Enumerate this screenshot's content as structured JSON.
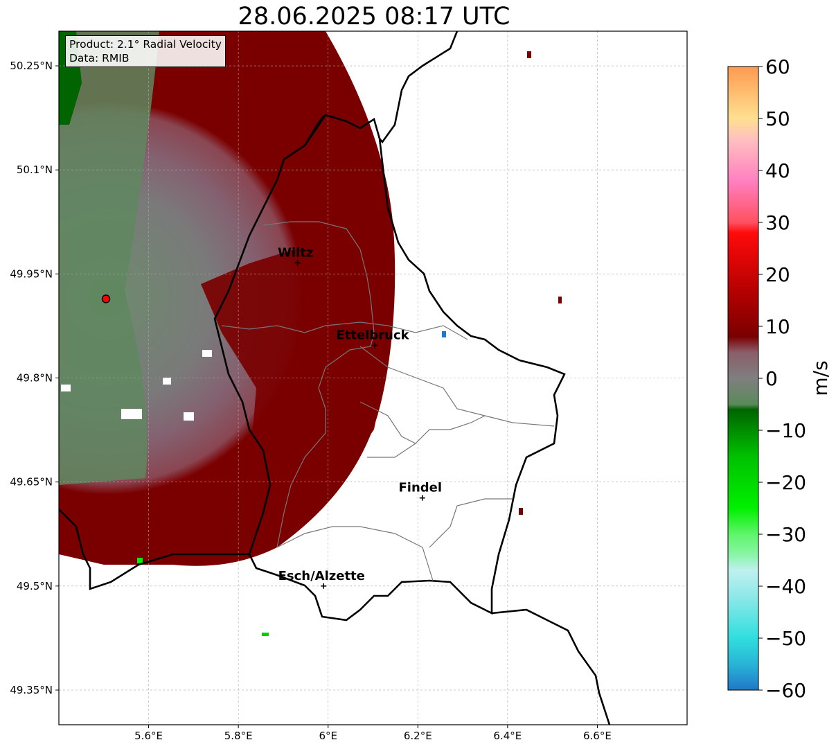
{
  "title": "28.06.2025 08:17 UTC",
  "info": {
    "product": "Product: 2.1° Radial Velocity",
    "data": "Data: RMIB"
  },
  "map": {
    "lon_range": [
      5.4,
      6.8
    ],
    "lat_range": [
      49.3,
      50.3
    ],
    "lat_ticks": [
      {
        "value": 50.25,
        "label": "50.25°N"
      },
      {
        "value": 50.1,
        "label": "50.1°N"
      },
      {
        "value": 49.95,
        "label": "49.95°N"
      },
      {
        "value": 49.8,
        "label": "49.8°N"
      },
      {
        "value": 49.65,
        "label": "49.65°N"
      },
      {
        "value": 49.5,
        "label": "49.5°N"
      },
      {
        "value": 49.35,
        "label": "49.35°N"
      }
    ],
    "lon_ticks": [
      {
        "value": 5.6,
        "label": "5.6°E"
      },
      {
        "value": 5.8,
        "label": "5.8°E"
      },
      {
        "value": 6.0,
        "label": "6°E"
      },
      {
        "value": 6.2,
        "label": "6.2°E"
      },
      {
        "value": 6.4,
        "label": "6.4°E"
      },
      {
        "value": 6.6,
        "label": "6.6°E"
      }
    ],
    "grid": true,
    "radar_site": {
      "lon": 5.505,
      "lat": 49.914
    },
    "cities": [
      {
        "name": "Wiltz",
        "lon": 5.932,
        "lat": 49.966
      },
      {
        "name": "Ettelbruck",
        "lon": 6.104,
        "lat": 49.847
      },
      {
        "name": "Findel",
        "lon": 6.21,
        "lat": 49.627
      },
      {
        "name": "Esch/Alzette",
        "lon": 5.99,
        "lat": 49.5
      }
    ]
  },
  "colorbar": {
    "min": -60,
    "max": 60,
    "ticks": [
      {
        "value": 60,
        "label": "60"
      },
      {
        "value": 50,
        "label": "50"
      },
      {
        "value": 40,
        "label": "40"
      },
      {
        "value": 30,
        "label": "30"
      },
      {
        "value": 20,
        "label": "20"
      },
      {
        "value": 10,
        "label": "10"
      },
      {
        "value": 0,
        "label": "0"
      },
      {
        "value": -10,
        "label": "−10"
      },
      {
        "value": -20,
        "label": "−20"
      },
      {
        "value": -30,
        "label": "−30"
      },
      {
        "value": -40,
        "label": "−40"
      },
      {
        "value": -50,
        "label": "−50"
      },
      {
        "value": -60,
        "label": "−60"
      }
    ],
    "unit": "m/s",
    "stops": [
      {
        "value": -60,
        "color": "#1f78c8"
      },
      {
        "value": -55,
        "color": "#29b4d6"
      },
      {
        "value": -50,
        "color": "#30dede"
      },
      {
        "value": -42,
        "color": "#8fe8e8"
      },
      {
        "value": -37,
        "color": "#bff0f0"
      },
      {
        "value": -34,
        "color": "#8af5a8"
      },
      {
        "value": -30,
        "color": "#5ff56a"
      },
      {
        "value": -25,
        "color": "#00f000"
      },
      {
        "value": -15,
        "color": "#00c000"
      },
      {
        "value": -6,
        "color": "#006400"
      },
      {
        "value": -5,
        "color": "#5a8a5a"
      },
      {
        "value": 0,
        "color": "#7f7f7f"
      },
      {
        "value": 5,
        "color": "#8a5e6a"
      },
      {
        "value": 8,
        "color": "#7a0000"
      },
      {
        "value": 16,
        "color": "#b00000"
      },
      {
        "value": 28,
        "color": "#ff0a0a"
      },
      {
        "value": 30,
        "color": "#ff5060"
      },
      {
        "value": 38,
        "color": "#ff80c0"
      },
      {
        "value": 46,
        "color": "#ffc0c0"
      },
      {
        "value": 50,
        "color": "#ffe090"
      },
      {
        "value": 60,
        "color": "#ff9a50"
      }
    ]
  }
}
